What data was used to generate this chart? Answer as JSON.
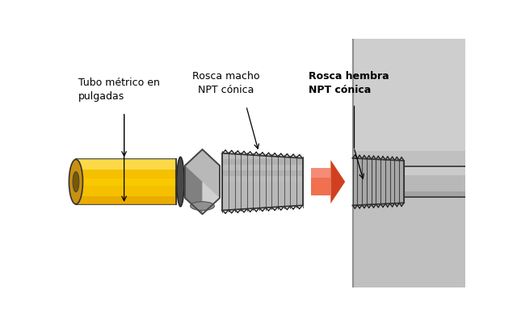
{
  "bg_color": "#ffffff",
  "label1": "Tubo métrico en\npulgadas",
  "label2": "Rosca macho\nNPT cónica",
  "label3": "Rosca hembra\nNPT cónica",
  "yellow1": "#F5C000",
  "yellow2": "#E8A800",
  "yellow3": "#FFE566",
  "yellow_dark": "#B07800",
  "yellow_end": "#C89010",
  "gray1": "#B8B8B8",
  "gray2": "#989898",
  "gray3": "#D0D0D0",
  "gray_dark": "#606060",
  "gray_wall": "#C0C0C0",
  "gray_wall2": "#D8D8D8",
  "thread_bg": "#A8A8A8",
  "red_arrow": "#D04020",
  "red_arrow_light": "#F07050",
  "black": "#000000",
  "dark_ring": "#484848"
}
